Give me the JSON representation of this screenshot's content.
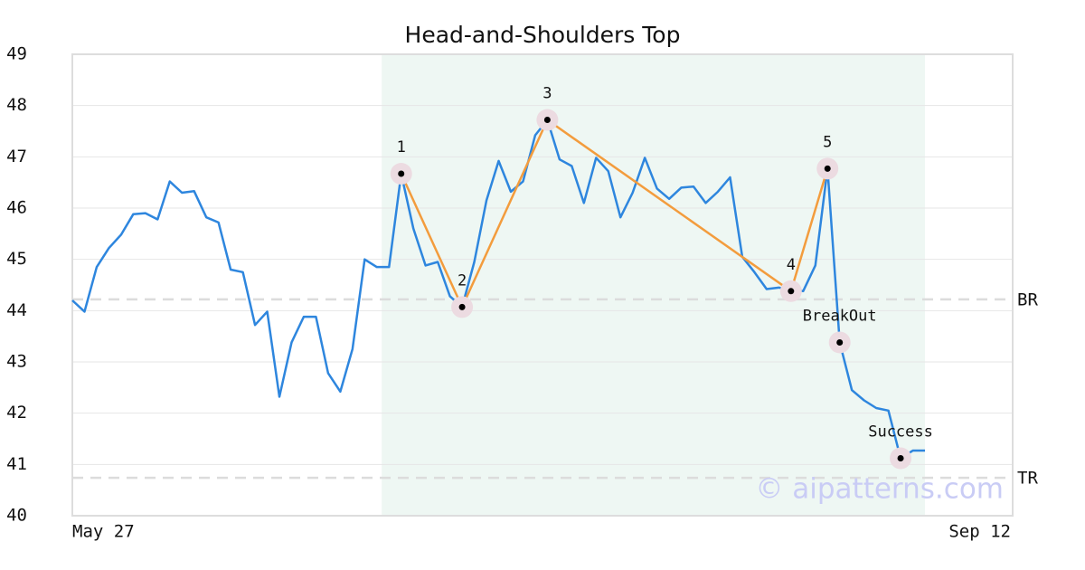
{
  "chart_data": {
    "type": "line",
    "title": "Head-and-Shoulders Top",
    "x": [
      0,
      1,
      2,
      3,
      4,
      5,
      6,
      7,
      8,
      9,
      10,
      11,
      12,
      13,
      14,
      15,
      16,
      17,
      18,
      19,
      20,
      21,
      22,
      23,
      24,
      25,
      26,
      27,
      28,
      29,
      30,
      31,
      32,
      33,
      34,
      35,
      36,
      37,
      38,
      39,
      40,
      41,
      42,
      43,
      44,
      45,
      46,
      47,
      48,
      49,
      50,
      51,
      52,
      53,
      54,
      55,
      56,
      57,
      58,
      59,
      60,
      61,
      62,
      63,
      64,
      65,
      66,
      67,
      68,
      69,
      70
    ],
    "series": [
      {
        "color": "#2e86de",
        "values": [
          44.2,
          43.98,
          44.85,
          45.22,
          45.48,
          45.88,
          45.9,
          45.78,
          46.52,
          46.3,
          46.33,
          45.82,
          45.72,
          44.8,
          44.75,
          43.72,
          43.98,
          42.32,
          43.38,
          43.88,
          43.88,
          42.78,
          42.42,
          43.25,
          45.0,
          44.85,
          44.85,
          46.67,
          45.6,
          44.88,
          44.95,
          44.28,
          44.07,
          44.95,
          46.15,
          46.92,
          46.32,
          46.52,
          47.42,
          47.72,
          46.95,
          46.82,
          46.1,
          46.98,
          46.72,
          45.82,
          46.3,
          46.98,
          46.38,
          46.18,
          46.4,
          46.42,
          46.1,
          46.32,
          46.6,
          45.05,
          44.75,
          44.42,
          44.45,
          44.4,
          44.38,
          44.88,
          46.77,
          43.38,
          42.45,
          42.25,
          42.1,
          42.05,
          41.12,
          41.27,
          41.27
        ]
      }
    ],
    "pattern": {
      "color": "#f39c3d",
      "x": [
        27,
        32,
        39,
        59,
        62
      ],
      "values": [
        46.67,
        44.07,
        47.72,
        44.38,
        46.77
      ],
      "labels": [
        "1",
        "2",
        "3",
        "4",
        "5"
      ]
    },
    "signals": {
      "x": [
        63,
        68
      ],
      "values": [
        43.38,
        41.12
      ],
      "labels": [
        "BreakOut",
        "Success"
      ]
    },
    "levels": [
      {
        "name": "BR",
        "value": 44.22
      },
      {
        "name": "TR",
        "value": 40.74
      }
    ],
    "highlight_x": [
      25.4,
      70
    ],
    "xlim": [
      0,
      77.2
    ],
    "xticks": [
      {
        "value": 0,
        "label": "May 27"
      },
      {
        "value": 77.2,
        "label": "Sep 12"
      }
    ],
    "ylim": [
      40,
      49
    ],
    "yticks": [
      40,
      41,
      42,
      43,
      44,
      45,
      46,
      47,
      48,
      49
    ],
    "grid": true,
    "watermark": "© aipatterns.com"
  }
}
